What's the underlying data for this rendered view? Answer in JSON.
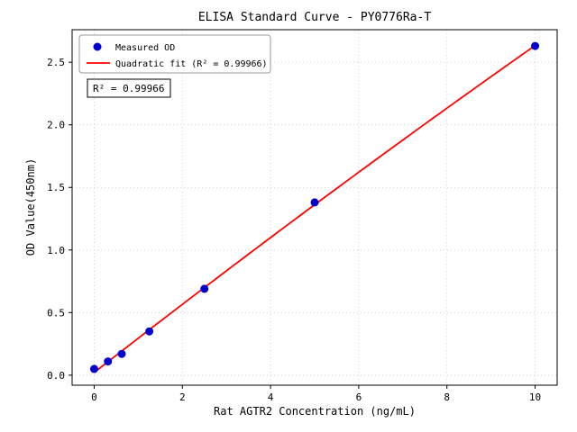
{
  "chart_data": {
    "type": "scatter",
    "title": "ELISA Standard Curve - PY0776Ra-T",
    "xlabel": "Rat AGTR2 Concentration (ng/mL)",
    "ylabel": "OD Value(450nm)",
    "xlim": [
      -0.5,
      10.5
    ],
    "ylim": [
      -0.08,
      2.76
    ],
    "xticks": [
      0,
      2,
      4,
      6,
      8,
      10
    ],
    "xtick_labels": [
      "0",
      "2",
      "4",
      "6",
      "8",
      "10"
    ],
    "yticks": [
      0,
      0.5,
      1,
      1.5,
      2,
      2.5
    ],
    "ytick_labels": [
      "0.0",
      "0.5",
      "1.0",
      "1.5",
      "2.0",
      "2.5"
    ],
    "grid": true,
    "grid_color": "#c8c8c8",
    "legend_position": "upper left",
    "annotation": "R² = 0.99966",
    "series": [
      {
        "name": "Measured OD",
        "type": "scatter",
        "color": "#0000cd",
        "x": [
          0,
          0.3125,
          0.625,
          1.25,
          2.5,
          5,
          10
        ],
        "y": [
          0.05,
          0.11,
          0.17,
          0.35,
          0.69,
          1.38,
          2.63
        ]
      },
      {
        "name": "Quadratic fit (R² = 0.99966)",
        "type": "quadratic-fit-line",
        "color": "#ff0000"
      }
    ]
  }
}
